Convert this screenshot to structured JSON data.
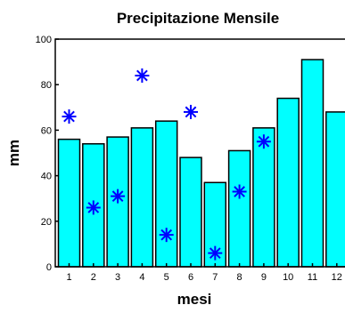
{
  "chart_data": {
    "type": "bar",
    "title": "Precipitazione Mensile",
    "xlabel": "mesi",
    "ylabel": "mm",
    "categories": [
      "1",
      "2",
      "3",
      "4",
      "5",
      "6",
      "7",
      "8",
      "9",
      "10",
      "11",
      "12"
    ],
    "series": [
      {
        "values": [
          56,
          54,
          57,
          61,
          64,
          48,
          37,
          51,
          61,
          74,
          91,
          68
        ]
      },
      {
        "values": [
          66,
          26,
          31,
          84,
          14,
          68,
          6,
          33,
          55,
          null,
          null,
          null
        ]
      }
    ],
    "ylim": [
      0,
      100
    ],
    "yticks": [
      0,
      20,
      40,
      60,
      80,
      100
    ],
    "grid": false,
    "legend": "none",
    "colors": {
      "bar_fill": "#00ffff",
      "bar_stroke": "#000000",
      "marker": "#0000ff"
    }
  }
}
